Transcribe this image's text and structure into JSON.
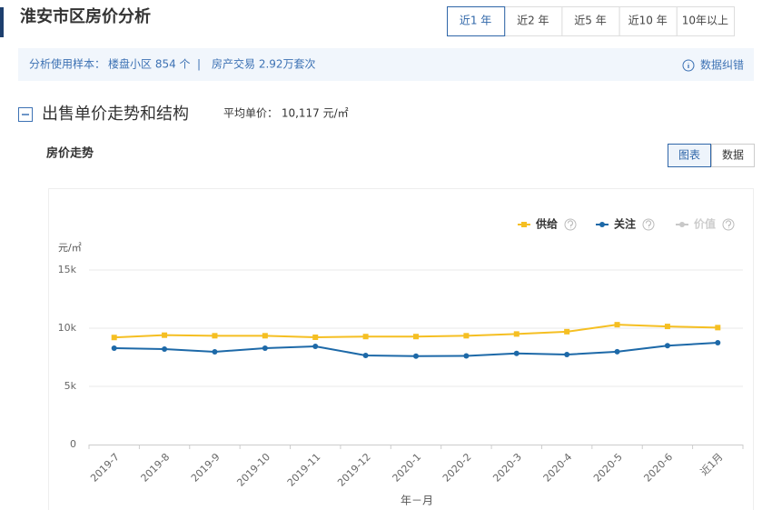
{
  "header": {
    "title": "淮安市区房价分析",
    "tabs": [
      "近1 年",
      "近2 年",
      "近5 年",
      "近10 年",
      "10年以上"
    ],
    "selected_tab": 0
  },
  "info": {
    "sample_label": "分析使用样本：",
    "community": "楼盘小区 854 个",
    "separator": "|",
    "trade": "房产交易 2.92万套次",
    "correction": "数据纠错"
  },
  "section": {
    "title": "出售单价走势和结构",
    "avg_price": "平均单价： 10,117 元/㎡",
    "subtitle": "房价走势",
    "views": [
      "图表",
      "数据"
    ],
    "selected_view": 0
  },
  "chart_data": {
    "type": "line",
    "y_unit": "元/㎡",
    "x_label": "年－月",
    "categories": [
      "2019-7",
      "2019-8",
      "2019-9",
      "2019-10",
      "2019-11",
      "2019-12",
      "2020-1",
      "2020-2",
      "2020-3",
      "2020-4",
      "2020-5",
      "2020-6",
      "近1月"
    ],
    "series": [
      {
        "name": "供给",
        "color": "#f5bf22",
        "marker": "square",
        "values": [
          9200,
          9400,
          9350,
          9350,
          9220,
          9280,
          9280,
          9350,
          9500,
          9700,
          10300,
          10150,
          10050
        ]
      },
      {
        "name": "关注",
        "color": "#1d69a8",
        "marker": "circle",
        "values": [
          8280,
          8200,
          7970,
          8280,
          8440,
          7660,
          7600,
          7620,
          7830,
          7730,
          7980,
          8500,
          8750
        ]
      },
      {
        "name": "价值",
        "color": "#c8c8c8",
        "marker": "circle",
        "values": [
          null,
          null,
          null,
          null,
          null,
          null,
          null,
          null,
          null,
          null,
          null,
          null,
          null
        ]
      }
    ],
    "ylim": [
      0,
      15000
    ],
    "yticks": [
      0,
      {
        "value": 5000,
        "label": "5k"
      },
      {
        "value": 10000,
        "label": "10k"
      },
      {
        "value": 15000,
        "label": "15k"
      }
    ],
    "grid": true
  }
}
